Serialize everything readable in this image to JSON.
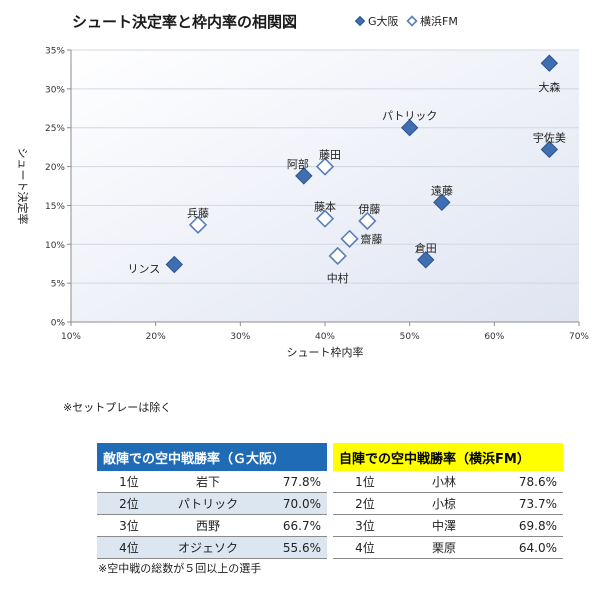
{
  "chart_data": {
    "type": "scatter",
    "title": "シュート決定率と枠内率の相関図",
    "xlabel": "シュート枠内率",
    "ylabel": "シュート決定率",
    "xlim": [
      0.1,
      0.7
    ],
    "ylim": [
      0.0,
      0.35
    ],
    "x_ticks": [
      0.1,
      0.2,
      0.3,
      0.4,
      0.5,
      0.6,
      0.7
    ],
    "y_ticks": [
      0.0,
      0.05,
      0.1,
      0.15,
      0.2,
      0.25,
      0.3,
      0.35
    ],
    "x_tick_labels": [
      "10%",
      "20%",
      "30%",
      "40%",
      "50%",
      "60%",
      "70%"
    ],
    "y_tick_labels": [
      "0%",
      "5%",
      "10%",
      "15%",
      "20%",
      "25%",
      "30%",
      "35%"
    ],
    "grid": "horizontal",
    "legend_position": "top-right",
    "series": [
      {
        "name": "G大阪",
        "marker": "filled-diamond",
        "color": "#3f6fb0",
        "points": [
          {
            "label": "大森",
            "x": 0.665,
            "y": 0.333
          },
          {
            "label": "宇佐美",
            "x": 0.665,
            "y": 0.222
          },
          {
            "label": "パトリック",
            "x": 0.5,
            "y": 0.25
          },
          {
            "label": "遠藤",
            "x": 0.538,
            "y": 0.154
          },
          {
            "label": "倉田",
            "x": 0.519,
            "y": 0.08
          },
          {
            "label": "阿部",
            "x": 0.375,
            "y": 0.188
          },
          {
            "label": "リンス",
            "x": 0.222,
            "y": 0.074
          }
        ]
      },
      {
        "name": "横浜FM",
        "marker": "hollow-diamond",
        "color": "#3f6fb0",
        "points": [
          {
            "label": "藤田",
            "x": 0.4,
            "y": 0.2
          },
          {
            "label": "藤本",
            "x": 0.4,
            "y": 0.133
          },
          {
            "label": "伊藤",
            "x": 0.45,
            "y": 0.13
          },
          {
            "label": "齋藤",
            "x": 0.429,
            "y": 0.107
          },
          {
            "label": "中村",
            "x": 0.415,
            "y": 0.085
          },
          {
            "label": "兵藤",
            "x": 0.25,
            "y": 0.125
          }
        ]
      }
    ]
  },
  "notes": {
    "setplay": "※セットプレーは除く",
    "footnote": "※空中戦の総数が５回以上の選手"
  },
  "tables": {
    "gosaka": {
      "title": "敵陣での空中戦勝率（Ｇ大阪）",
      "rows": [
        {
          "rank": "1位",
          "name": "岩下",
          "value": "77.8%"
        },
        {
          "rank": "2位",
          "name": "パトリック",
          "value": "70.0%"
        },
        {
          "rank": "3位",
          "name": "西野",
          "value": "66.7%"
        },
        {
          "rank": "4位",
          "name": "オジェソク",
          "value": "55.6%"
        }
      ]
    },
    "yokohama": {
      "title": "自陣での空中戦勝率（横浜FM）",
      "rows": [
        {
          "rank": "1位",
          "name": "小林",
          "value": "78.6%"
        },
        {
          "rank": "2位",
          "name": "小椋",
          "value": "73.7%"
        },
        {
          "rank": "3位",
          "name": "中澤",
          "value": "69.8%"
        },
        {
          "rank": "4位",
          "name": "栗原",
          "value": "64.0%"
        }
      ]
    }
  }
}
